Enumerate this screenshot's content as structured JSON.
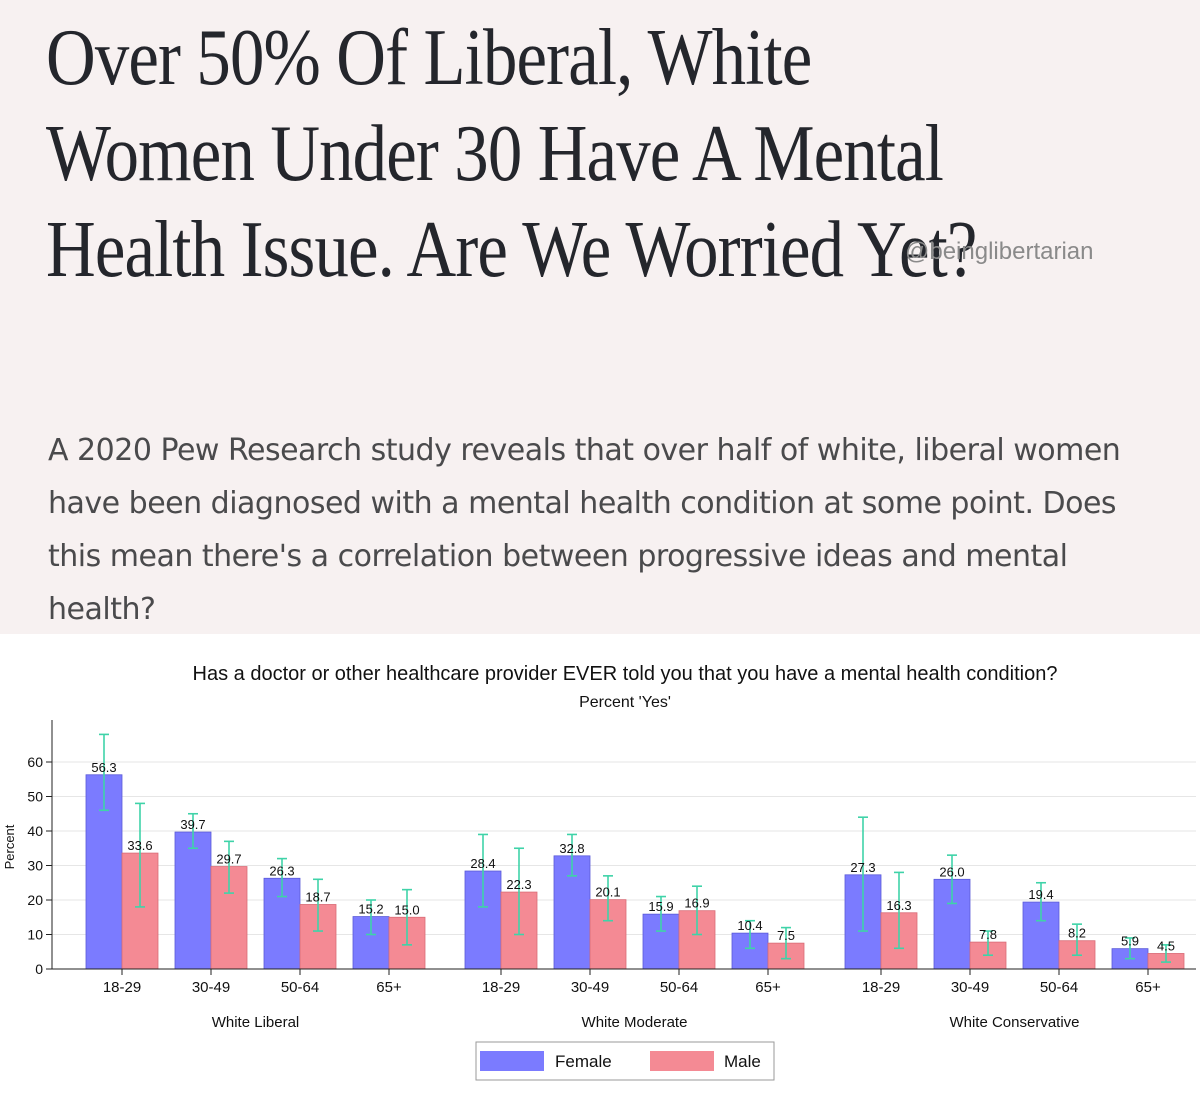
{
  "article": {
    "headline": "Over 50% Of Liberal, White Women Under 30 Have A Mental Health Issue. Are We Worried Yet?",
    "handle": "@beinglibertarian",
    "lede": "A 2020 Pew Research study reveals that over half of white, liberal women have been diagnosed with a mental health condition at some point. Does this mean there's a correlation between progressive ideas and mental health?"
  },
  "colors": {
    "female": "#7b7bff",
    "male": "#f48a94",
    "error_bar": "#3fd3a8",
    "grid": "#e6e6e6"
  },
  "chart_data": {
    "type": "bar",
    "title": "Has a doctor or other healthcare provider EVER told you that you have a mental health condition?",
    "subtitle": "Percent 'Yes'",
    "ylabel": "Percent",
    "ylim": [
      0,
      70
    ],
    "yticks": [
      0,
      10,
      20,
      30,
      40,
      50,
      60
    ],
    "grid": true,
    "legend_position": "bottom-center",
    "series_names": [
      "Female",
      "Male"
    ],
    "groups": [
      {
        "name": "White Liberal",
        "categories": [
          "18-29",
          "30-49",
          "50-64",
          "65+"
        ],
        "female": [
          56.3,
          39.7,
          26.3,
          15.2
        ],
        "male": [
          33.6,
          29.7,
          18.7,
          15.0
        ],
        "female_labels": [
          "56.3",
          "39.7",
          "26.3",
          "15.2"
        ],
        "male_labels": [
          "33.6",
          "29.7",
          "18.7",
          "15.0"
        ],
        "female_ci": [
          [
            46,
            68
          ],
          [
            35,
            45
          ],
          [
            21,
            32
          ],
          [
            10,
            20
          ]
        ],
        "male_ci": [
          [
            18,
            48
          ],
          [
            22,
            37
          ],
          [
            11,
            26
          ],
          [
            7,
            23
          ]
        ]
      },
      {
        "name": "White Moderate",
        "categories": [
          "18-29",
          "30-49",
          "50-64",
          "65+"
        ],
        "female": [
          28.4,
          32.8,
          15.9,
          10.4
        ],
        "male": [
          22.3,
          20.1,
          16.9,
          7.5
        ],
        "female_labels": [
          "28.4",
          "32.8",
          "15.9",
          "10.4"
        ],
        "male_labels": [
          "22.3",
          "20.1",
          "16.9",
          "7.5"
        ],
        "female_ci": [
          [
            18,
            39
          ],
          [
            27,
            39
          ],
          [
            11,
            21
          ],
          [
            6,
            14
          ]
        ],
        "male_ci": [
          [
            10,
            35
          ],
          [
            14,
            27
          ],
          [
            10,
            24
          ],
          [
            3,
            12
          ]
        ]
      },
      {
        "name": "White Conservative",
        "categories": [
          "18-29",
          "30-49",
          "50-64",
          "65+"
        ],
        "female": [
          27.3,
          26.0,
          19.4,
          5.9
        ],
        "male": [
          16.3,
          7.8,
          8.2,
          4.5
        ],
        "female_labels": [
          "27.3",
          "26.0",
          "19.4",
          "5.9"
        ],
        "male_labels": [
          "16.3",
          "7.8",
          "8.2",
          "4.5"
        ],
        "female_ci": [
          [
            11,
            44
          ],
          [
            19,
            33
          ],
          [
            14,
            25
          ],
          [
            3,
            9
          ]
        ],
        "male_ci": [
          [
            6,
            28
          ],
          [
            4,
            11
          ],
          [
            4,
            13
          ],
          [
            2,
            7
          ]
        ]
      }
    ]
  }
}
